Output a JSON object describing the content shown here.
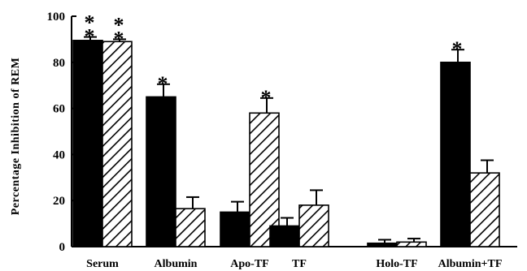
{
  "chart_data": {
    "type": "bar",
    "ylabel": "Percentage Inhibition of REM",
    "xlabel": "",
    "ylim": [
      0,
      100
    ],
    "yticks": [
      0,
      20,
      40,
      60,
      80,
      100
    ],
    "categories": [
      "Serum",
      "Albumin",
      "Apo-TF",
      "TF",
      "Holo-TF",
      "Albumin+TF"
    ],
    "series": [
      {
        "fill": "solid",
        "color": "#000000",
        "values": [
          89.5,
          65,
          15,
          9,
          1.5,
          80
        ],
        "errors": [
          1.5,
          5.5,
          4.5,
          3.5,
          1.5,
          5.5
        ],
        "significance": [
          "**",
          "*",
          "",
          "",
          "",
          "*"
        ]
      },
      {
        "fill": "hatched",
        "color": "#000000",
        "values": [
          89,
          16.5,
          58,
          18,
          2,
          32
        ],
        "errors": [
          1,
          5,
          6.5,
          6.5,
          1.5,
          5.5
        ],
        "significance": [
          "**",
          "",
          "*",
          "",
          "",
          ""
        ]
      }
    ]
  }
}
